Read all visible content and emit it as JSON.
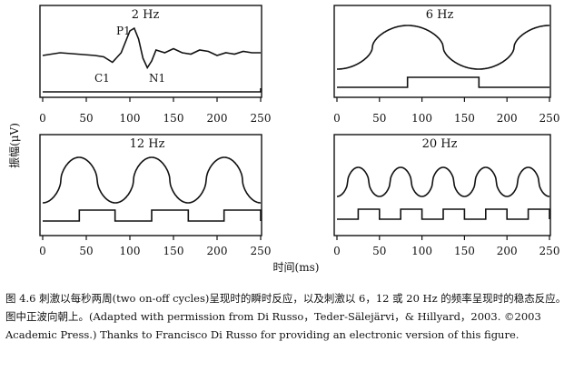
{
  "figure": {
    "ylabel": "振幅(μV)",
    "xlabel": "时间(ms)",
    "panels": [
      {
        "title": "2 Hz",
        "annotations": [
          "P1",
          "C1",
          "N1"
        ]
      },
      {
        "title": "6 Hz",
        "annotations": []
      },
      {
        "title": "12 Hz",
        "annotations": []
      },
      {
        "title": "20 Hz",
        "annotations": []
      }
    ]
  },
  "caption": {
    "label": "图 4.6",
    "text": "刺激以每秒两周(two on-off cycles)呈现时的瞬时反应，以及刺激以 6，12 或 20 Hz 的频率呈现时的稳态反应。图中正波向朝上。(Adapted with permission from Di Russo，Teder-Sälejärvi，& Hillyard，2003. ©2003 Academic Press.) Thanks to Francisco Di Russo for providing an electronic version of this figure."
  },
  "chart_data": [
    {
      "type": "line",
      "title": "2 Hz",
      "xlabel": "时间(ms)",
      "ylabel": "振幅(μV)",
      "xlim": [
        0,
        250
      ],
      "xticks": [
        0,
        50,
        100,
        150,
        200,
        250
      ],
      "annotations": [
        "P1",
        "C1",
        "N1"
      ],
      "series": [
        {
          "kind": "waveform",
          "x": [
            0,
            20,
            40,
            60,
            70,
            80,
            90,
            100,
            105,
            110,
            115,
            120,
            125,
            130,
            140,
            150,
            160,
            170,
            180,
            190,
            200,
            210,
            220,
            230,
            240,
            250
          ],
          "y": [
            0.1,
            0.2,
            0.15,
            0.1,
            0.05,
            -0.15,
            0.2,
            1.0,
            1.1,
            0.7,
            0.0,
            -0.35,
            -0.1,
            0.3,
            0.2,
            0.35,
            0.2,
            0.15,
            0.3,
            0.25,
            0.1,
            0.2,
            0.15,
            0.25,
            0.2,
            0.2
          ]
        },
        {
          "kind": "stimulus",
          "x": [
            0,
            250
          ],
          "y": [
            0,
            0
          ]
        }
      ]
    },
    {
      "type": "line",
      "title": "6 Hz",
      "xlim": [
        0,
        250
      ],
      "xticks": [
        0,
        50,
        100,
        150,
        200,
        250
      ],
      "series": [
        {
          "kind": "waveform",
          "frequency_hz": 6
        },
        {
          "kind": "stimulus",
          "on_intervals": [
            [
              83,
              167
            ]
          ]
        }
      ]
    },
    {
      "type": "line",
      "title": "12 Hz",
      "xlim": [
        0,
        250
      ],
      "xticks": [
        0,
        50,
        100,
        150,
        200,
        250
      ],
      "series": [
        {
          "kind": "waveform",
          "frequency_hz": 12
        },
        {
          "kind": "stimulus",
          "on_intervals": [
            [
              42,
              83
            ],
            [
              125,
              167
            ],
            [
              208,
              250
            ]
          ]
        }
      ]
    },
    {
      "type": "line",
      "title": "20 Hz",
      "xlim": [
        0,
        250
      ],
      "xticks": [
        0,
        50,
        100,
        150,
        200,
        250
      ],
      "series": [
        {
          "kind": "waveform",
          "frequency_hz": 20
        },
        {
          "kind": "stimulus",
          "on_intervals": [
            [
              25,
              50
            ],
            [
              75,
              100
            ],
            [
              125,
              150
            ],
            [
              175,
              200
            ],
            [
              225,
              250
            ]
          ]
        }
      ]
    }
  ]
}
